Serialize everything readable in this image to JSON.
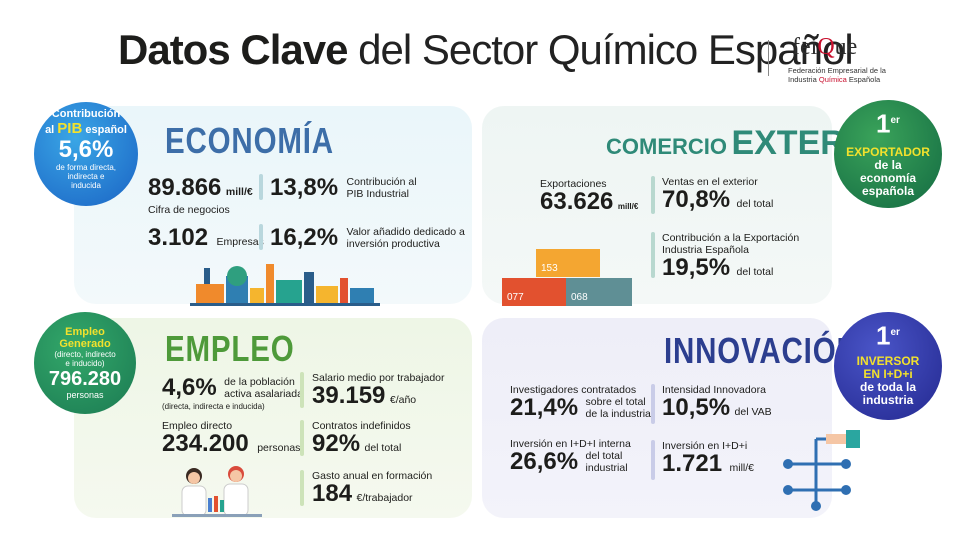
{
  "header": {
    "title_bold": "Datos Clave",
    "title_rest": "del Sector Químico Español",
    "logo_name_a": "fei",
    "logo_name_b": "Q",
    "logo_name_c": "ue",
    "logo_sub_1": "Federación Empresarial de la",
    "logo_sub_2a": "Industria ",
    "logo_sub_2b": "Química",
    "logo_sub_2c": " Española"
  },
  "pib_badge": {
    "line1": "Contribución",
    "line2a": "al ",
    "line2b": "PIB",
    "line2c": " español",
    "value": "5,6%",
    "line3": "de forma directa,",
    "line4": "indirecta e",
    "line5": "inducida"
  },
  "economia": {
    "title": "ECONOMÍA",
    "cifra_value": "89.866",
    "cifra_unit": "mill/€",
    "cifra_label": "Cifra de negocios",
    "empresas_value": "3.102",
    "empresas_label": "Empresas",
    "pib_ind_value": "13,8%",
    "pib_ind_label1": "Contribución al",
    "pib_ind_label2": "PIB Industrial",
    "vab_value": "16,2%",
    "vab_label1": "Valor añadido dedicado a",
    "vab_label2": "inversión productiva"
  },
  "comercio": {
    "title_a": "COMERCIO",
    "title_b": "EXTERIOR",
    "export_label": "Exportaciones",
    "export_value": "63.626",
    "export_unit": "mill/€",
    "ventas_label": "Ventas en el exterior",
    "ventas_value": "70,8%",
    "ventas_unit": "del total",
    "contrib_label1": "Contribución a la Exportación",
    "contrib_label2": "Industria Española",
    "contrib_value": "19,5%",
    "contrib_unit": "del total",
    "containers": [
      "153",
      "077",
      "068"
    ]
  },
  "exportador_badge": {
    "rank": "1",
    "rank_sup": "er",
    "line1": "EXPORTADOR",
    "line2": "de la",
    "line3": "economía",
    "line4": "española"
  },
  "empleo_badge": {
    "line1": "Empleo",
    "line2": "Generado",
    "line3": "(directo, indirecto",
    "line4": "e inducido)",
    "value": "796.280",
    "line5": "personas"
  },
  "empleo": {
    "title": "EMPLEO",
    "pob_value": "4,6%",
    "pob_label1": "de la población",
    "pob_label2": "activa asalariada",
    "pob_note": "(directa, indirecta e inducida)",
    "directo_label": "Empleo directo",
    "directo_value": "234.200",
    "directo_unit": "personas",
    "salario_label": "Salario medio por trabajador",
    "salario_value": "39.159",
    "salario_unit": "€/año",
    "contratos_label": "Contratos indefinidos",
    "contratos_value": "92%",
    "contratos_unit": "del total",
    "formacion_label": "Gasto anual en formación",
    "formacion_value": "184",
    "formacion_unit": "€/trabajador"
  },
  "innovacion": {
    "title": "INNOVACIÓN",
    "invest_label": "Investigadores contratados",
    "invest_value": "21,4%",
    "invest_unit1": "sobre el total",
    "invest_unit2": "de la industria",
    "inversion_int_label": "Inversión en I+D+I interna",
    "inversion_int_value": "26,6%",
    "inversion_int_unit1": "del total",
    "inversion_int_unit2": "industrial",
    "intensidad_label": "Intensidad Innovadora",
    "intensidad_value": "10,5%",
    "intensidad_unit": "del VAB",
    "inversion_label": "Inversión en I+D+i",
    "inversion_value": "1.721",
    "inversion_unit": "mill/€"
  },
  "inversor_badge": {
    "rank": "1",
    "rank_sup": "er",
    "line1": "INVERSOR",
    "line2": "EN I+D+i",
    "line3": "de toda la",
    "line4": "industria"
  },
  "colors": {
    "economia": "#3d6ea8",
    "comercio": "#2f8a78",
    "empleo": "#4e9a3a",
    "innovacion": "#2c3e8f",
    "yellow": "#f2e12d"
  }
}
